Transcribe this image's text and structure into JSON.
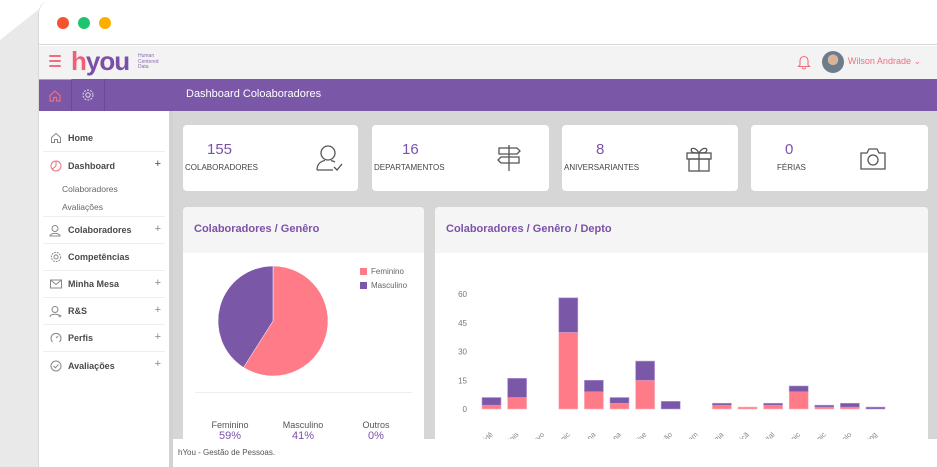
{
  "window": {
    "traffic_lights": [
      "#f5522f",
      "#1fc56e",
      "#ffae00"
    ]
  },
  "topbar": {
    "logo_h": "h",
    "logo_you": "you",
    "logo_sub": [
      "Human",
      "Centered",
      "Data"
    ],
    "user_name": "Wilson Andrade ⌄",
    "icons": {
      "menu": "hamburger-icon",
      "notifications": "bell-icon",
      "avatar": "user-avatar"
    }
  },
  "navbar": {
    "title": "Dashboard Coloaboradores",
    "icons": [
      "home-icon",
      "gear-icon"
    ]
  },
  "sidebar": {
    "items": [
      {
        "label": "Home",
        "icon": "home-icon",
        "expandable": false
      },
      {
        "label": "Dashboard",
        "icon": "clock-icon",
        "expandable": true,
        "plus": "+",
        "children": [
          "Colaboradores",
          "Avaliações"
        ]
      },
      {
        "label": "Colaboradores",
        "icon": "users-icon",
        "expandable": true,
        "plus": "+"
      },
      {
        "label": "Competências",
        "icon": "gear-icon",
        "expandable": false
      },
      {
        "label": "Minha Mesa",
        "icon": "envelope-icon",
        "expandable": true,
        "plus": "+"
      },
      {
        "label": "R&S",
        "icon": "user-add-icon",
        "expandable": true,
        "plus": "+"
      },
      {
        "label": "Perfis",
        "icon": "gauge-icon",
        "expandable": true,
        "plus": "+"
      },
      {
        "label": "Avaliações",
        "icon": "check-circle-icon",
        "expandable": true,
        "plus": "+"
      }
    ]
  },
  "cards": [
    {
      "value": "155",
      "label": "COLABORADORES",
      "icon": "user-check-icon"
    },
    {
      "value": "16",
      "label": "DEPARTAMENTOS",
      "icon": "signpost-icon"
    },
    {
      "value": "8",
      "label": "ANIVERSARIANTES",
      "icon": "gift-icon"
    },
    {
      "value": "0",
      "label": "FÉRIAS",
      "icon": "camera-icon"
    }
  ],
  "colors": {
    "feminino": "#ff7b88",
    "masculino": "#7a57a7",
    "accent": "#7a57a7",
    "pink": "#ef6e80"
  },
  "gender_panel": {
    "title": "Colaboradores / Genêro",
    "stats": [
      {
        "label": "Feminino",
        "pct": "59%"
      },
      {
        "label": "Masculino",
        "pct": "41%"
      },
      {
        "label": "Outros",
        "pct": "0%"
      }
    ]
  },
  "dept_panel": {
    "title": "Colaboradores / Genêro / Depto"
  },
  "footer": {
    "text": "hYou - Gestão de Pessoas."
  },
  "chart_data": [
    {
      "type": "pie",
      "title": "Colaboradores / Genêro",
      "labels": [
        "Feminino",
        "Masculino"
      ],
      "values": [
        59,
        41
      ],
      "legend": "top-right"
    },
    {
      "type": "bar",
      "stacked": true,
      "title": "Colaboradores / Genêro / Depto",
      "categories": [
        "sidê",
        "rinis",
        "nvo",
        "unic",
        "iona",
        "iona",
        "ilise",
        "ação",
        "inam",
        "neja",
        "içã",
        "igital",
        "unic",
        "unic",
        "olo",
        "hing"
      ],
      "series": [
        {
          "name": "Feminino",
          "values": [
            2,
            6,
            0,
            40,
            9,
            3,
            15,
            0,
            0,
            2,
            1,
            2,
            9,
            1,
            1,
            0
          ]
        },
        {
          "name": "Masculino",
          "values": [
            4,
            10,
            0,
            18,
            6,
            3,
            10,
            4,
            0,
            1,
            0,
            1,
            3,
            1,
            2,
            1
          ]
        }
      ],
      "yticks": [
        0,
        15,
        30,
        45,
        60
      ],
      "ylim": [
        0,
        60
      ],
      "grid": false
    }
  ]
}
